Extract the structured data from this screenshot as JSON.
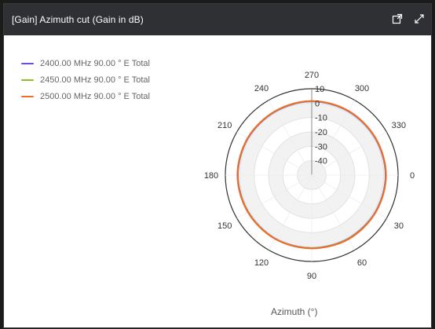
{
  "window": {
    "title": "[Gain] Azimuth cut (Gain in dB)",
    "actions": [
      {
        "label": "popout",
        "icon": "popout-icon"
      },
      {
        "label": "expand",
        "icon": "expand-icon"
      }
    ]
  },
  "chart_data": {
    "type": "polar-line",
    "title": "",
    "angle_label": "Azimuth (°)",
    "radial_axis": {
      "tick_labels": [
        "10",
        "0",
        "-10",
        "-20",
        "-30",
        "-40"
      ],
      "range_db": [
        -50,
        10
      ]
    },
    "angle_ticks": [
      "0",
      "30",
      "60",
      "90",
      "120",
      "150",
      "180",
      "210",
      "240",
      "270",
      "300",
      "330"
    ],
    "legend": {
      "placement": "top-left"
    },
    "series": [
      {
        "name": "2400.00 MHz 90.00 ° E Total",
        "color": "#6b4fe0",
        "azimuth": [
          0,
          30,
          60,
          90,
          120,
          150,
          180,
          210,
          240,
          270,
          300,
          330
        ],
        "gain_db": [
          1.3,
          1.1,
          0.9,
          0.7,
          0.9,
          1.0,
          1.3,
          1.1,
          0.9,
          1.2,
          1.1,
          1.0
        ]
      },
      {
        "name": "2450.00 MHz 90.00 ° E Total",
        "color": "#8bbf24",
        "azimuth": [
          0,
          30,
          60,
          90,
          120,
          150,
          180,
          210,
          240,
          270,
          300,
          330
        ],
        "gain_db": [
          1.5,
          1.3,
          1.1,
          0.8,
          1.0,
          1.1,
          1.5,
          1.3,
          1.1,
          1.4,
          1.3,
          1.2
        ]
      },
      {
        "name": "2500.00 MHz 90.00 ° E Total",
        "color": "#f26b2a",
        "azimuth": [
          0,
          30,
          60,
          90,
          120,
          150,
          180,
          210,
          240,
          270,
          300,
          330
        ],
        "gain_db": [
          1.6,
          1.4,
          1.3,
          0.9,
          1.1,
          1.3,
          1.6,
          1.4,
          1.2,
          1.5,
          1.4,
          1.3
        ]
      }
    ]
  }
}
